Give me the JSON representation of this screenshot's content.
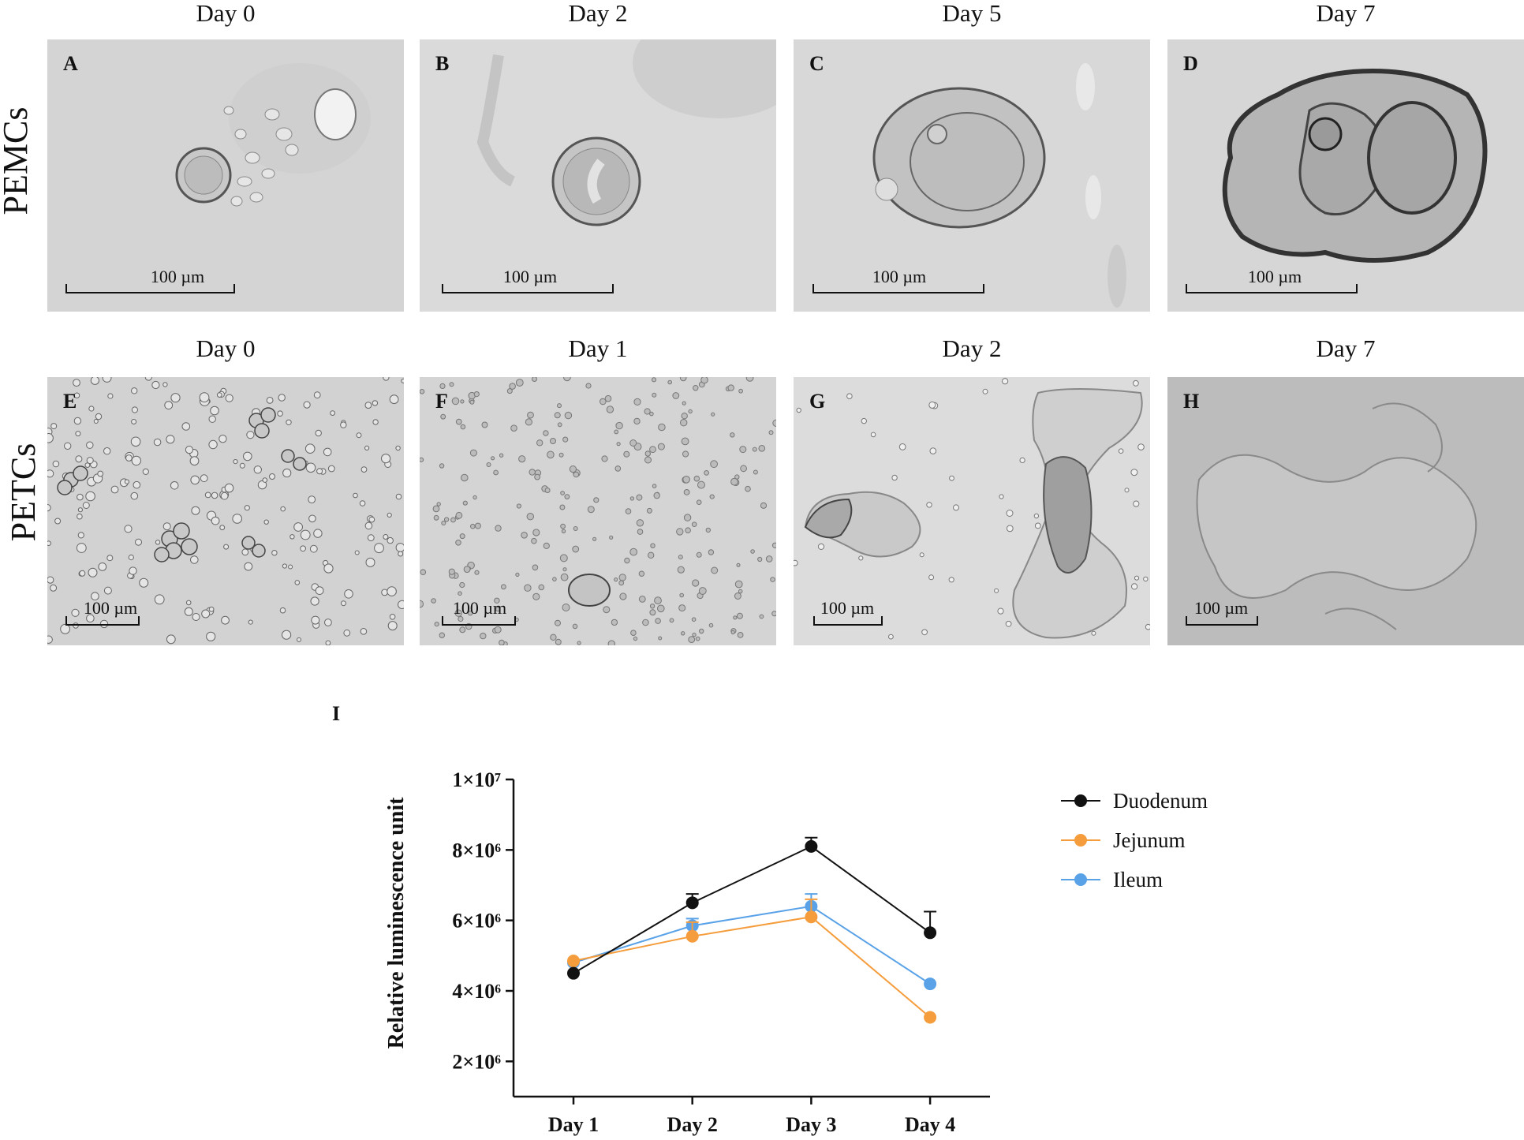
{
  "figure": {
    "rows": [
      {
        "label": "PEMCs",
        "panels": [
          {
            "title": "Day 0",
            "letter": "A",
            "scale": "100 µm"
          },
          {
            "title": "Day 2",
            "letter": "B",
            "scale": "100 µm"
          },
          {
            "title": "Day 5",
            "letter": "C",
            "scale": "100 µm"
          },
          {
            "title": "Day 7",
            "letter": "D",
            "scale": "100 µm"
          }
        ]
      },
      {
        "label": "PETCs",
        "panels": [
          {
            "title": "Day 0",
            "letter": "E",
            "scale": "100 µm"
          },
          {
            "title": "Day 1",
            "letter": "F",
            "scale": "100 µm"
          },
          {
            "title": "Day 2",
            "letter": "G",
            "scale": "100 µm"
          },
          {
            "title": "Day 7",
            "letter": "H",
            "scale": "100 µm"
          }
        ]
      }
    ],
    "chart_letter": "I"
  },
  "chart_data": {
    "type": "line",
    "title": "",
    "xlabel": "",
    "ylabel": "Relative luminescence unit",
    "categories": [
      "Day 1",
      "Day 2",
      "Day 3",
      "Day 4"
    ],
    "ylim": [
      1000000,
      10000000
    ],
    "y_ticks": [
      {
        "value": 2000000,
        "label": "2×10⁶"
      },
      {
        "value": 4000000,
        "label": "4×10⁶"
      },
      {
        "value": 6000000,
        "label": "6×10⁶"
      },
      {
        "value": 8000000,
        "label": "8×10⁶"
      },
      {
        "value": 10000000,
        "label": "1×10⁷"
      }
    ],
    "legend_position": "right",
    "series": [
      {
        "name": "Duodenum",
        "color": "#111111",
        "values": [
          4500000,
          6500000,
          8100000,
          5650000
        ],
        "errors": [
          0,
          250000,
          250000,
          600000
        ]
      },
      {
        "name": "Jejunum",
        "color": "#f59d3d",
        "values": [
          4850000,
          5550000,
          6100000,
          3250000
        ],
        "errors": [
          0,
          400000,
          500000,
          0
        ]
      },
      {
        "name": "Ileum",
        "color": "#5aa2e8",
        "values": [
          4800000,
          5850000,
          6400000,
          4200000
        ],
        "errors": [
          0,
          200000,
          350000,
          0
        ]
      }
    ]
  }
}
